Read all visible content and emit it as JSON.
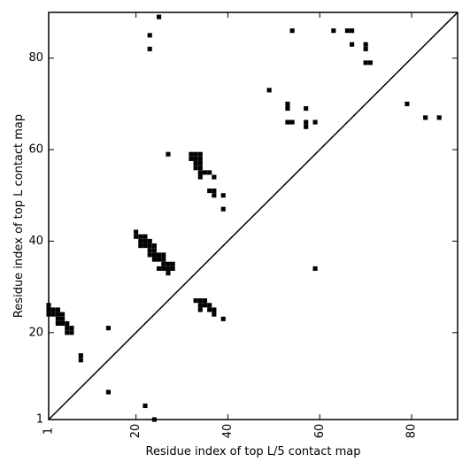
{
  "chart_data": {
    "type": "scatter",
    "marker": "square",
    "xlabel": "Residue index of top L/5 contact map",
    "ylabel": "Residue index of top L contact map",
    "xlim": [
      1,
      90
    ],
    "ylim": [
      1,
      90
    ],
    "x_ticks": [
      1,
      20,
      40,
      60,
      80
    ],
    "y_ticks": [
      1,
      20,
      40,
      60,
      80
    ],
    "x_tick_labels": [
      "1",
      "20",
      "40",
      "60",
      "80"
    ],
    "y_tick_labels": [
      "1",
      "20",
      "40",
      "60",
      "80"
    ],
    "grid": false,
    "diagonal_line": [
      [
        1,
        1
      ],
      [
        90,
        90
      ]
    ],
    "point_color": "#000000",
    "points": [
      [
        1,
        26
      ],
      [
        1,
        25
      ],
      [
        1,
        24
      ],
      [
        2,
        25
      ],
      [
        2,
        24
      ],
      [
        3,
        25
      ],
      [
        3,
        24
      ],
      [
        3,
        23
      ],
      [
        3,
        22
      ],
      [
        4,
        24
      ],
      [
        4,
        23
      ],
      [
        4,
        22
      ],
      [
        5,
        22
      ],
      [
        5,
        21
      ],
      [
        5,
        20
      ],
      [
        6,
        21
      ],
      [
        6,
        20
      ],
      [
        8,
        15
      ],
      [
        8,
        14
      ],
      [
        14,
        21
      ],
      [
        14,
        7
      ],
      [
        20,
        42
      ],
      [
        20,
        41
      ],
      [
        21,
        41
      ],
      [
        21,
        40
      ],
      [
        21,
        39
      ],
      [
        22,
        41
      ],
      [
        22,
        40
      ],
      [
        22,
        39
      ],
      [
        22,
        4
      ],
      [
        23,
        85
      ],
      [
        23,
        82
      ],
      [
        23,
        40
      ],
      [
        23,
        39
      ],
      [
        23,
        38
      ],
      [
        23,
        37
      ],
      [
        24,
        39
      ],
      [
        24,
        38
      ],
      [
        24,
        37
      ],
      [
        24,
        36
      ],
      [
        24,
        1
      ],
      [
        25,
        89
      ],
      [
        25,
        37
      ],
      [
        25,
        36
      ],
      [
        25,
        34
      ],
      [
        26,
        37
      ],
      [
        26,
        36
      ],
      [
        26,
        35
      ],
      [
        26,
        34
      ],
      [
        27,
        59
      ],
      [
        27,
        35
      ],
      [
        27,
        34
      ],
      [
        27,
        33
      ],
      [
        28,
        35
      ],
      [
        28,
        34
      ],
      [
        32,
        59
      ],
      [
        32,
        58
      ],
      [
        33,
        59
      ],
      [
        33,
        58
      ],
      [
        33,
        57
      ],
      [
        33,
        56
      ],
      [
        33,
        27
      ],
      [
        34,
        59
      ],
      [
        34,
        58
      ],
      [
        34,
        57
      ],
      [
        34,
        56
      ],
      [
        34,
        55
      ],
      [
        34,
        54
      ],
      [
        34,
        27
      ],
      [
        34,
        26
      ],
      [
        34,
        25
      ],
      [
        35,
        55
      ],
      [
        35,
        27
      ],
      [
        35,
        26
      ],
      [
        36,
        55
      ],
      [
        36,
        51
      ],
      [
        36,
        26
      ],
      [
        36,
        25
      ],
      [
        37,
        54
      ],
      [
        37,
        51
      ],
      [
        37,
        50
      ],
      [
        37,
        25
      ],
      [
        37,
        24
      ],
      [
        39,
        50
      ],
      [
        39,
        47
      ],
      [
        39,
        23
      ],
      [
        49,
        73
      ],
      [
        53,
        70
      ],
      [
        53,
        69
      ],
      [
        53,
        66
      ],
      [
        54,
        86
      ],
      [
        54,
        66
      ],
      [
        57,
        69
      ],
      [
        57,
        66
      ],
      [
        57,
        65
      ],
      [
        59,
        66
      ],
      [
        59,
        34
      ],
      [
        63,
        86
      ],
      [
        66,
        86
      ],
      [
        67,
        86
      ],
      [
        67,
        83
      ],
      [
        70,
        83
      ],
      [
        70,
        82
      ],
      [
        70,
        79
      ],
      [
        71,
        79
      ],
      [
        79,
        70
      ],
      [
        83,
        67
      ],
      [
        86,
        67
      ]
    ]
  }
}
